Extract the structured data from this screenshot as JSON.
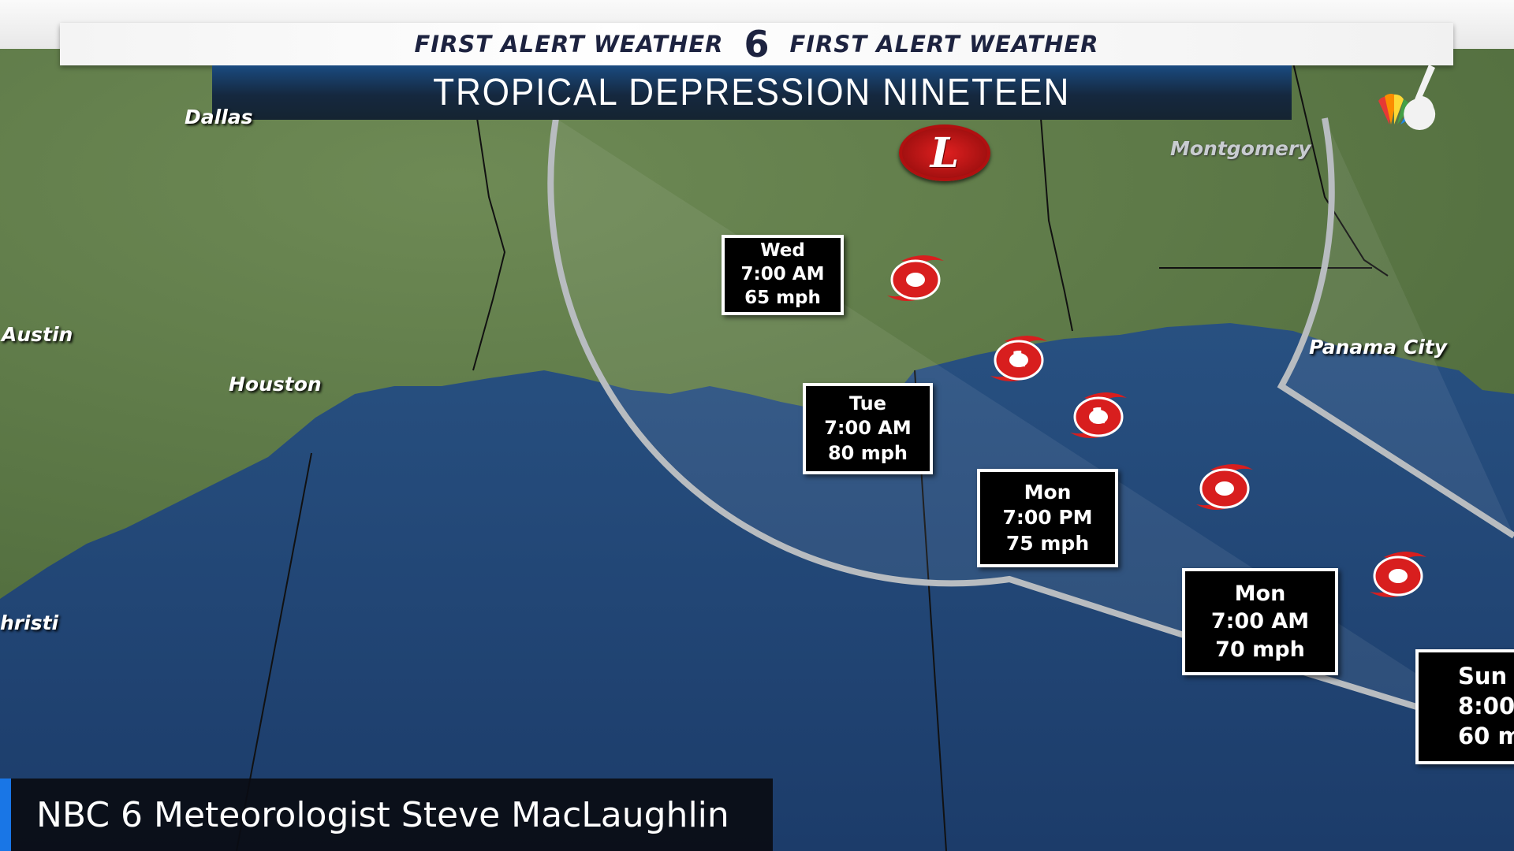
{
  "header": {
    "brand_left": "FIRST ALERT WEATHER",
    "brand_right": "FIRST ALERT WEATHER",
    "logo": "6",
    "title": "TROPICAL DEPRESSION NINETEEN"
  },
  "cities": {
    "dallas": "Dallas",
    "austin": "Austin",
    "houston": "Houston",
    "christi": "hristi",
    "montgomery": "Montgomery",
    "panama_city": "Panama City"
  },
  "low_marker": "L",
  "forecast_points": [
    {
      "day": "Wed",
      "time": "7:00 AM",
      "wind": "65 mph"
    },
    {
      "day": "Tue",
      "time": "7:00 AM",
      "wind": "80 mph"
    },
    {
      "day": "Mon",
      "time": "7:00 PM",
      "wind": "75 mph"
    },
    {
      "day": "Mon",
      "time": "7:00 AM",
      "wind": "70 mph"
    },
    {
      "day": "Sun",
      "time": "8:00",
      "wind": "60 m"
    }
  ],
  "storm_icons": [
    {
      "type": "tropical-storm-icon",
      "category": ""
    },
    {
      "type": "hurricane-icon",
      "category": "1"
    },
    {
      "type": "hurricane-icon",
      "category": "1"
    },
    {
      "type": "tropical-storm-icon",
      "category": ""
    },
    {
      "type": "tropical-storm-icon",
      "category": ""
    }
  ],
  "caption": "NBC 6 Meteorologist Steve MacLaughlin",
  "colors": {
    "storm_red": "#d81e1e",
    "caption_accent": "#1976e6",
    "title_band": "#15283f",
    "brand_text": "#1d2340"
  }
}
